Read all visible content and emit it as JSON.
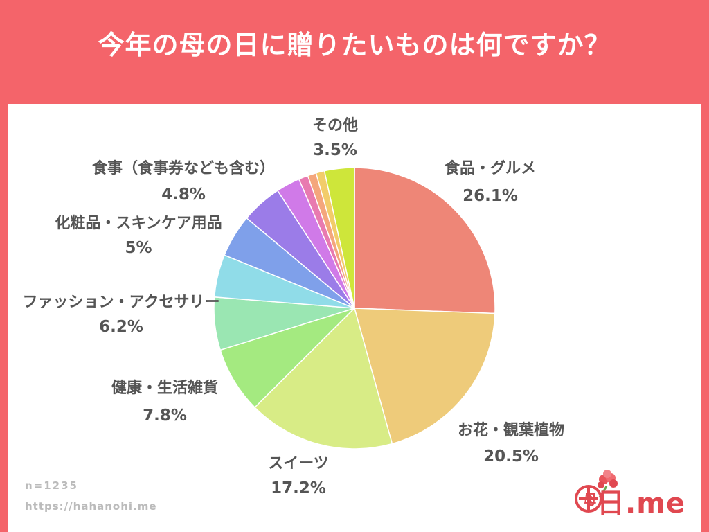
{
  "header": {
    "title": "今年の母の日に贈りたいものは何ですか？"
  },
  "footer": {
    "sample": "n=1235",
    "url": "https://hahanohi.me"
  },
  "logo": {
    "text": "日.me",
    "mark": "母",
    "accent": "#e04850",
    "icon": "carnation-icon"
  },
  "chart_data": {
    "type": "pie",
    "title": "今年の母の日に贈りたいものは何ですか？",
    "unit": "%",
    "start_angle_deg": 0,
    "direction": "clockwise",
    "slices": [
      {
        "label": "食品・グルメ",
        "value": 26.1,
        "display": "26.1%",
        "color": "#ee8677"
      },
      {
        "label": "お花・観葉植物",
        "value": 20.5,
        "display": "20.5%",
        "color": "#eecb7a"
      },
      {
        "label": "スイーツ",
        "value": 17.2,
        "display": "17.2%",
        "color": "#d8ec86"
      },
      {
        "label": "健康・生活雑貨",
        "value": 7.8,
        "display": "7.8%",
        "color": "#a4ea80"
      },
      {
        "label": "ファッション・アクセサリー",
        "value": 6.2,
        "display": "6.2%",
        "color": "#9ae6b2"
      },
      {
        "label": "",
        "value": 5.0,
        "display": "",
        "color": "#90dce8"
      },
      {
        "label": "化粧品・スキンケア用品",
        "value": 5.0,
        "display": "5%",
        "color": "#7fa0ea"
      },
      {
        "label": "食事（食事券なども含む）",
        "value": 4.8,
        "display": "4.8%",
        "color": "#9b7ce8"
      },
      {
        "label": "",
        "value": 2.8,
        "display": "",
        "color": "#d07ae8"
      },
      {
        "label": "",
        "value": 1.1,
        "display": "",
        "color": "#e87ab0"
      },
      {
        "label": "",
        "value": 1.0,
        "display": "",
        "color": "#f4a67c"
      },
      {
        "label": "",
        "value": 1.0,
        "display": "",
        "color": "#f2cc6a"
      },
      {
        "label": "その他",
        "value": 3.5,
        "display": "3.5%",
        "color": "#cee63a"
      }
    ]
  }
}
